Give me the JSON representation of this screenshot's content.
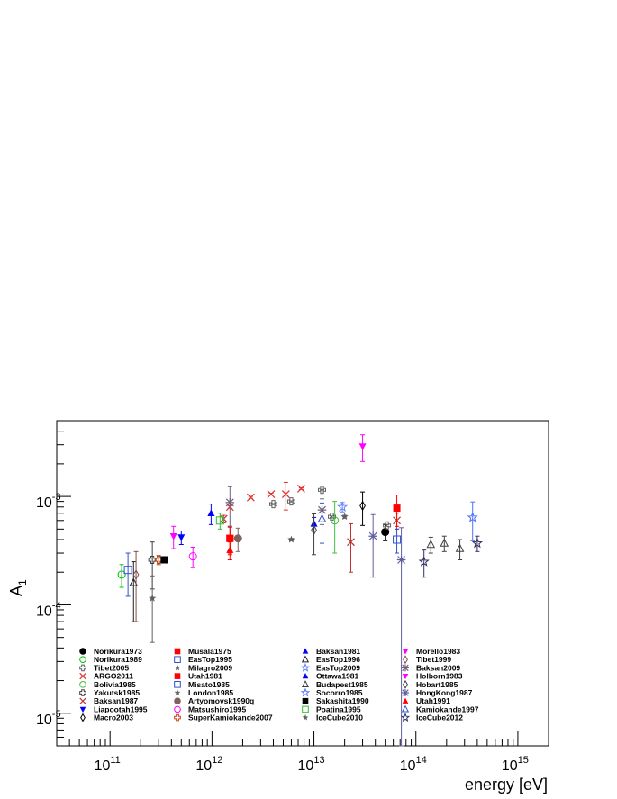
{
  "chart_data": {
    "type": "scatter",
    "title": "",
    "xlabel": "energy [eV]",
    "ylabel": "A",
    "ylabel_subscript": "1",
    "xscale": "log",
    "yscale": "log",
    "xlim": [
      30000000000.0,
      2000000000000000.0
    ],
    "ylim": [
      5e-06,
      0.005
    ],
    "x_ticks": [
      {
        "base": "10",
        "exp": "11",
        "value": 100000000000.0
      },
      {
        "base": "10",
        "exp": "12",
        "value": 1000000000000.0
      },
      {
        "base": "10",
        "exp": "13",
        "value": 10000000000000.0
      },
      {
        "base": "10",
        "exp": "14",
        "value": 100000000000000.0
      },
      {
        "base": "10",
        "exp": "15",
        "value": 1000000000000000.0
      }
    ],
    "y_ticks": [
      {
        "base": "10",
        "exp": "-5",
        "value": 1e-05
      },
      {
        "base": "10",
        "exp": "-4",
        "value": 0.0001
      },
      {
        "base": "10",
        "exp": "-3",
        "value": 0.001
      }
    ],
    "grid": false,
    "legend_position": "bottom-inside",
    "series": [
      {
        "name": "Norikura1973",
        "marker": "circle-filled",
        "color": "#000000",
        "points": [
          [
            50000000000000.0,
            0.00047,
            8e-05
          ]
        ]
      },
      {
        "name": "Norikura1989",
        "marker": "circle-open",
        "color": "#00c000",
        "points": [
          [
            130000000000.0,
            0.00019,
            4.5e-05
          ]
        ]
      },
      {
        "name": "Tibet2005",
        "marker": "cross-open",
        "color": "#606060",
        "points": [
          [
            4000000000000.0,
            0.00085,
            1e-05
          ],
          [
            6000000000000.0,
            0.0009,
            1e-05
          ],
          [
            12000000000000.0,
            0.00115,
            1e-05
          ],
          [
            15000000000000.0,
            0.00065,
            1e-05
          ],
          [
            52000000000000.0,
            0.00054,
            1e-05
          ]
        ]
      },
      {
        "name": "ARGO2011",
        "marker": "x",
        "color": "#e03030",
        "points": [
          [
            1500000000000.0,
            0.0008,
            2e-05
          ],
          [
            2400000000000.0,
            0.00098,
            2e-05
          ],
          [
            3800000000000.0,
            0.00105,
            2e-05
          ],
          [
            5300000000000.0,
            0.00105,
            0.0003
          ],
          [
            7500000000000.0,
            0.00118,
            2e-05
          ]
        ]
      },
      {
        "name": "Bolivia1985",
        "marker": "circle-open",
        "color": "#40c040",
        "points": [
          [
            16000000000000.0,
            0.0006,
            0.0003
          ]
        ]
      },
      {
        "name": "Yakutsk1985",
        "marker": "cross-open",
        "color": "#404040",
        "points": [
          [
            260000000000.0,
            0.00026,
            0.00012
          ]
        ]
      },
      {
        "name": "Baksan1987",
        "marker": "x",
        "color": "#c03030",
        "points": [
          [
            1300000000000.0,
            0.00062,
            5e-05
          ],
          [
            23000000000000.0,
            0.00038,
            0.00018
          ],
          [
            65000000000000.0,
            0.0006,
            0.0001
          ]
        ]
      },
      {
        "name": "Liapootah1995",
        "marker": "tri-down-filled",
        "color": "#0000ff",
        "points": [
          [
            500000000000.0,
            0.00042,
            6e-05
          ]
        ]
      },
      {
        "name": "Macro2003",
        "marker": "diamond-open",
        "color": "#000000",
        "points": [
          [
            30000000000000.0,
            0.00082,
            0.00028
          ]
        ]
      },
      {
        "name": "Musala1975",
        "marker": "square-filled",
        "color": "#ff0000",
        "points": [
          [
            1500000000000.0,
            0.00041,
            0.00011
          ],
          [
            65000000000000.0,
            0.00078,
            0.00025
          ]
        ]
      },
      {
        "name": "EasTop1995",
        "marker": "square-open",
        "color": "#3050d0",
        "points": [
          [
            150000000000.0,
            0.00021,
            9e-05
          ]
        ]
      },
      {
        "name": "Milagro2009",
        "marker": "star-filled",
        "color": "#606060",
        "points": [
          [
            6000000000000.0,
            0.0004,
            1e-05
          ]
        ]
      },
      {
        "name": "Utah1981",
        "marker": "square-filled",
        "color": "#ff0000",
        "points": [
          [
            1500000000000.0,
            0.00041,
            0.00012
          ]
        ]
      },
      {
        "name": "Misato1985",
        "marker": "square-open",
        "color": "#3050d0",
        "points": [
          [
            65000000000000.0,
            0.0004,
            0.0001
          ]
        ]
      },
      {
        "name": "London1985",
        "marker": "star-filled",
        "color": "#606060",
        "points": [
          [
            260000000000.0,
            0.000115,
            7e-05
          ]
        ]
      },
      {
        "name": "Artyomovsk1990q",
        "marker": "circle-filled",
        "color": "#806060",
        "points": [
          [
            1800000000000.0,
            0.00041,
            0.0001
          ]
        ]
      },
      {
        "name": "Matsushiro1995",
        "marker": "circle-open",
        "color": "#ff00ff",
        "points": [
          [
            650000000000.0,
            0.00028,
            6e-05
          ]
        ]
      },
      {
        "name": "SuperKamiokande2007",
        "marker": "cross-open",
        "color": "#c04010",
        "points": [
          [
            300000000000.0,
            0.00026,
            2.5e-05
          ]
        ]
      },
      {
        "name": "Baksan1981",
        "marker": "tri-up-filled",
        "color": "#0000ff",
        "points": [
          [
            10000000000000.0,
            0.00056,
            8e-05
          ]
        ]
      },
      {
        "name": "EasTop1996",
        "marker": "tri-up-open",
        "color": "#202020",
        "points": [
          [
            170000000000.0,
            0.00016,
            9e-05
          ]
        ]
      },
      {
        "name": "EasTop2009",
        "marker": "star-open",
        "color": "#6080ff",
        "points": [
          [
            19000000000000.0,
            0.0008,
            8e-05
          ]
        ]
      },
      {
        "name": "Ottawa1981",
        "marker": "tri-up-filled",
        "color": "#0000ff",
        "points": [
          [
            980000000000.0,
            0.0007,
            0.00015
          ]
        ]
      },
      {
        "name": "Budapest1985",
        "marker": "tri-up-open",
        "color": "#404040",
        "points": [
          [
            140000000000000.0,
            0.00036,
            6e-05
          ],
          [
            190000000000000.0,
            0.00037,
            6e-05
          ],
          [
            270000000000000.0,
            0.00033,
            7e-05
          ]
        ]
      },
      {
        "name": "Socorro1985",
        "marker": "star-open",
        "color": "#5070ff",
        "points": [
          [
            360000000000000.0,
            0.00064,
            0.00025
          ]
        ]
      },
      {
        "name": "Sakashita1990",
        "marker": "square-filled",
        "color": "#000000",
        "points": [
          [
            340000000000.0,
            0.00026,
            1e-05
          ]
        ]
      },
      {
        "name": "Poatina1995",
        "marker": "square-open",
        "color": "#30c030",
        "points": [
          [
            1200000000000.0,
            0.0006,
            0.0001
          ]
        ]
      },
      {
        "name": "IceCube2010",
        "marker": "star-filled",
        "color": "#606060",
        "points": [
          [
            20000000000000.0,
            0.00065,
            2e-05
          ]
        ]
      },
      {
        "name": "Morello1983",
        "marker": "tri-down-filled",
        "color": "#ff00ff",
        "points": [
          [
            30000000000000.0,
            0.0029,
            0.0008
          ]
        ]
      },
      {
        "name": "Tibet1999",
        "marker": "diamond-open",
        "color": "#805050",
        "points": [
          [
            180000000000.0,
            0.00019,
            0.00012
          ]
        ]
      },
      {
        "name": "Baksan2009",
        "marker": "asterisk",
        "color": "#706080",
        "points": [
          [
            1500000000000.0,
            0.00088,
            0.00035
          ],
          [
            12000000000000.0,
            0.00075,
            0.0002
          ]
        ]
      },
      {
        "name": "Holborn1983",
        "marker": "tri-down-filled",
        "color": "#ff00ff",
        "points": [
          [
            420000000000.0,
            0.00043,
            0.0001
          ]
        ]
      },
      {
        "name": "Hobart1985",
        "marker": "diamond-open",
        "color": "#404040",
        "points": [
          [
            10000000000000.0,
            0.00049,
            0.0002
          ]
        ]
      },
      {
        "name": "HongKong1987",
        "marker": "asterisk",
        "color": "#6060a0",
        "points": [
          [
            38000000000000.0,
            0.00043,
            0.00025
          ],
          [
            72000000000000.0,
            0.00026,
            0.000255
          ]
        ]
      },
      {
        "name": "Utah1991",
        "marker": "tri-up-filled",
        "color": "#ff0000",
        "points": [
          [
            1500000000000.0,
            0.00032,
            6e-05
          ]
        ]
      },
      {
        "name": "Kamiokande1997",
        "marker": "tri-up-open",
        "color": "#3050d0",
        "points": [
          [
            12000000000000.0,
            0.00062,
            0.00025
          ]
        ]
      },
      {
        "name": "IceCube2012",
        "marker": "star-open",
        "color": "#303060",
        "points": [
          [
            120000000000000.0,
            0.00025,
            7e-05
          ],
          [
            400000000000000.0,
            0.00037,
            6e-05
          ]
        ]
      }
    ]
  }
}
